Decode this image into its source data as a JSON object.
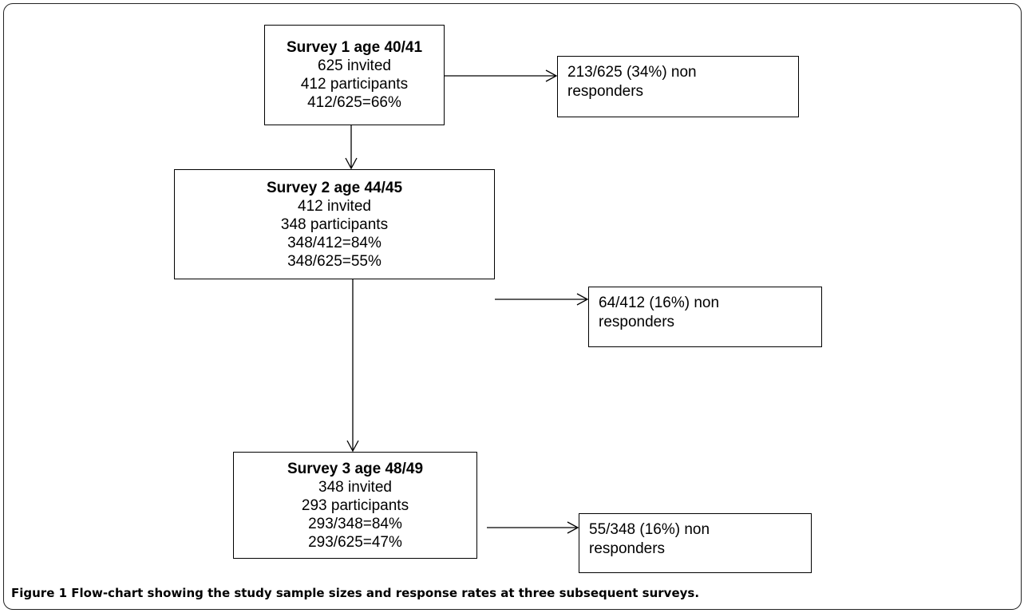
{
  "flowchart": {
    "surveys": [
      {
        "title": "Survey 1 age 40/41",
        "lines": [
          "625 invited",
          "412 participants",
          "412/625=66%"
        ]
      },
      {
        "title": "Survey 2 age 44/45",
        "lines": [
          "412 invited",
          "348 participants",
          "348/412=84%",
          "348/625=55%"
        ]
      },
      {
        "title": "Survey 3 age 48/49",
        "lines": [
          "348 invited",
          "293 participants",
          "293/348=84%",
          "293/625=47%"
        ]
      }
    ],
    "non_responders": [
      {
        "line1": "213/625  (34%) non",
        "line2": "responders"
      },
      {
        "line1": "64/412  (16%) non",
        "line2": "responders"
      },
      {
        "line1": "55/348 (16%) non",
        "line2": "responders"
      }
    ]
  },
  "caption": {
    "label": "Figure 1",
    "text": "Flow-chart showing the study sample sizes and response rates at three subsequent surveys."
  }
}
